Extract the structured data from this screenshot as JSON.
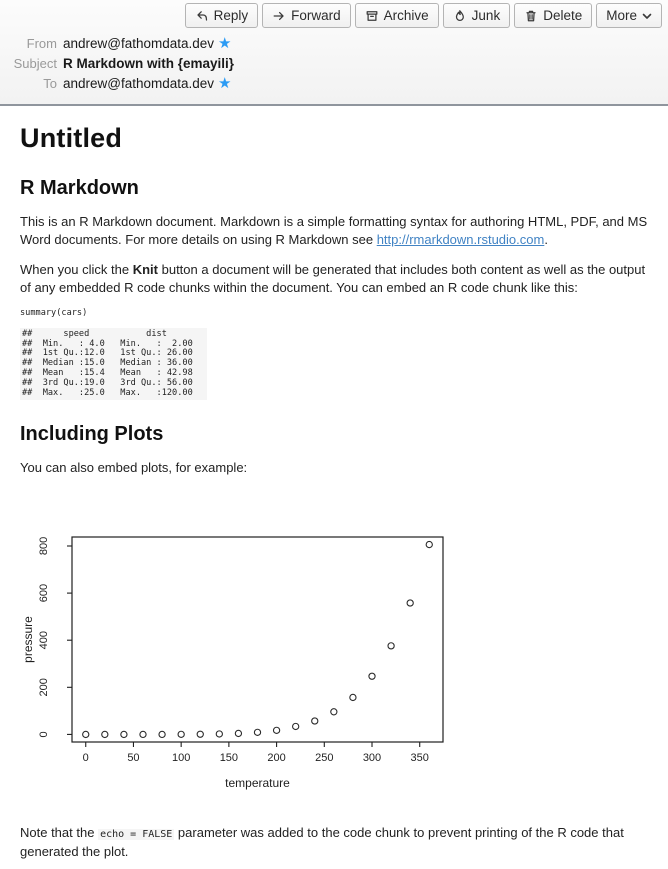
{
  "toolbar": {
    "buttons": [
      {
        "label": "Reply"
      },
      {
        "label": "Forward"
      },
      {
        "label": "Archive"
      },
      {
        "label": "Junk"
      },
      {
        "label": "Delete"
      },
      {
        "label": "More"
      }
    ]
  },
  "header": {
    "from_label": "From",
    "from_value": "andrew@fathomdata.dev",
    "subject_label": "Subject",
    "subject_value": "R Markdown with {emayili}",
    "to_label": "To",
    "to_value": "andrew@fathomdata.dev",
    "star_glyph": "★"
  },
  "content": {
    "title": "Untitled",
    "section1_heading": "R Markdown",
    "p1_before_link": "This is an R Markdown document. Markdown is a simple formatting syntax for authoring HTML, PDF, and MS Word documents. For more details on using R Markdown see ",
    "p1_link": "http://rmarkdown.rstudio.com",
    "p1_after_link": ".",
    "p2_before_bold": "When you click the ",
    "p2_bold": "Knit",
    "p2_after_bold": " button a document will be generated that includes both content as well as the output of any embedded R code chunks within the document. You can embed an R code chunk like this:",
    "code_source": "summary(cars)",
    "code_output_lines": [
      "##      speed           dist       ",
      "##  Min.   : 4.0   Min.   :  2.00  ",
      "##  1st Qu.:12.0   1st Qu.: 26.00  ",
      "##  Median :15.0   Median : 36.00  ",
      "##  Mean   :15.4   Mean   : 42.98  ",
      "##  3rd Qu.:19.0   3rd Qu.: 56.00  ",
      "##  Max.   :25.0   Max.   :120.00  "
    ],
    "section2_heading": "Including Plots",
    "p3": "You can also embed plots, for example:",
    "p4_before_code": "Note that the ",
    "p4_code": "echo = FALSE",
    "p4_after_code": " parameter was added to the code chunk to prevent printing of the R code that generated the plot."
  },
  "chart_data": {
    "type": "scatter",
    "title": "",
    "xlabel": "temperature",
    "ylabel": "pressure",
    "x": [
      0,
      20,
      40,
      60,
      80,
      100,
      120,
      140,
      160,
      180,
      200,
      220,
      240,
      260,
      280,
      300,
      320,
      340,
      360
    ],
    "y": [
      0.0002,
      0.0012,
      0.006,
      0.03,
      0.09,
      0.27,
      0.75,
      1.85,
      4.2,
      8.8,
      17.3,
      33.7,
      57.0,
      96.0,
      157.0,
      247.0,
      376.0,
      558.0,
      806.0
    ],
    "xticks": [
      0,
      50,
      100,
      150,
      200,
      250,
      300,
      350
    ],
    "yticks": [
      0,
      200,
      400,
      600,
      800
    ],
    "xlim": [
      -14.4,
      374.4
    ],
    "ylim": [
      -32.2,
      838.2
    ],
    "grid": false,
    "legend": null,
    "marker": "open-circle"
  },
  "colors": {
    "star_blue": "#2b9bf4",
    "link_blue": "#4183c4",
    "code_bg": "#f5f5f5"
  }
}
